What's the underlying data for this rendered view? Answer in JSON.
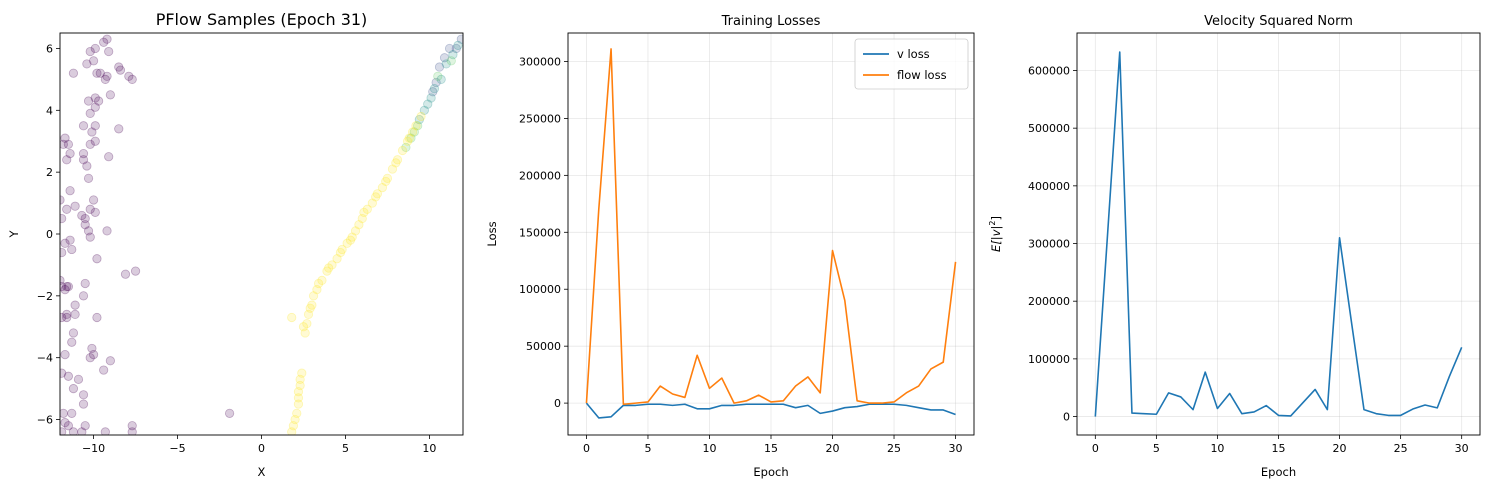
{
  "chart_data": [
    {
      "type": "scatter",
      "title": "PFlow Samples (Epoch 31)",
      "xlabel": "X",
      "ylabel": "Y",
      "xlim": [
        -12,
        12
      ],
      "ylim": [
        -6.5,
        6.5
      ],
      "xticks": [
        -10,
        -5,
        0,
        5,
        10
      ],
      "yticks": [
        -6,
        -4,
        -2,
        0,
        2,
        4,
        6
      ],
      "xtick_labels": [
        "−10",
        "−5",
        "0",
        "5",
        "10"
      ],
      "ytick_labels": [
        "−6",
        "−4",
        "−2",
        "0",
        "2",
        "4",
        "6"
      ],
      "grid": false,
      "colormap": "viridis",
      "point_alpha": 0.2,
      "groups": [
        {
          "color": "#440154",
          "points": [
            [
              -11.9,
              -6.4
            ],
            [
              -11.7,
              -6.1
            ],
            [
              -11.5,
              -6.2
            ],
            [
              -11.2,
              -6.4
            ],
            [
              -10.7,
              -6.4
            ],
            [
              -10.5,
              -6.2
            ],
            [
              -9.3,
              -6.4
            ],
            [
              -7.7,
              -6.4
            ],
            [
              -7.7,
              -6.2
            ],
            [
              -11.8,
              -5.8
            ],
            [
              -11.3,
              -5.8
            ],
            [
              -10.6,
              -5.5
            ],
            [
              -10.6,
              -5.2
            ],
            [
              -11.2,
              -5.0
            ],
            [
              -11.5,
              -4.6
            ],
            [
              -10.9,
              -4.7
            ],
            [
              -11.9,
              -4.5
            ],
            [
              -10.2,
              -4.0
            ],
            [
              -10.0,
              -3.9
            ],
            [
              -9.4,
              -4.4
            ],
            [
              -9.0,
              -4.1
            ],
            [
              -11.7,
              -3.9
            ],
            [
              -11.3,
              -3.5
            ],
            [
              -11.2,
              -3.2
            ],
            [
              -10.1,
              -3.7
            ],
            [
              -11.9,
              -2.7
            ],
            [
              -11.6,
              -2.7
            ],
            [
              -11.6,
              -2.6
            ],
            [
              -11.1,
              -2.6
            ],
            [
              -9.8,
              -2.7
            ],
            [
              -11.9,
              -1.7
            ],
            [
              -11.7,
              -1.8
            ],
            [
              -11.6,
              -1.7
            ],
            [
              -11.5,
              -1.7
            ],
            [
              -12.0,
              -1.5
            ],
            [
              -11.1,
              -2.3
            ],
            [
              -10.6,
              -2.0
            ],
            [
              -10.5,
              -1.6
            ],
            [
              -9.8,
              -0.8
            ],
            [
              -8.1,
              -1.3
            ],
            [
              -7.5,
              -1.2
            ],
            [
              -11.9,
              -0.6
            ],
            [
              -11.7,
              -0.3
            ],
            [
              -11.3,
              -0.5
            ],
            [
              -11.4,
              -0.2
            ],
            [
              -10.5,
              0.3
            ],
            [
              -10.3,
              0.1
            ],
            [
              -9.2,
              0.1
            ],
            [
              -10.2,
              -0.1
            ],
            [
              -11.9,
              0.5
            ],
            [
              -11.6,
              0.8
            ],
            [
              -11.1,
              0.9
            ],
            [
              -10.7,
              0.6
            ],
            [
              -10.2,
              0.8
            ],
            [
              -9.9,
              0.7
            ],
            [
              -10.5,
              0.5
            ],
            [
              -11.4,
              1.4
            ],
            [
              -12.0,
              1.1
            ],
            [
              -10.0,
              1.1
            ],
            [
              -10.3,
              1.8
            ],
            [
              -11.6,
              2.4
            ],
            [
              -11.4,
              2.6
            ],
            [
              -10.6,
              2.4
            ],
            [
              -10.4,
              2.2
            ],
            [
              -11.8,
              2.9
            ],
            [
              -11.5,
              2.9
            ],
            [
              -10.6,
              2.6
            ],
            [
              -10.2,
              2.9
            ],
            [
              -9.9,
              3.0
            ],
            [
              -9.1,
              2.5
            ],
            [
              -11.7,
              3.1
            ],
            [
              -10.6,
              3.5
            ],
            [
              -10.1,
              3.3
            ],
            [
              -9.9,
              3.5
            ],
            [
              -8.5,
              3.4
            ],
            [
              -10.3,
              4.3
            ],
            [
              -10.2,
              3.9
            ],
            [
              -9.9,
              4.1
            ],
            [
              -9.9,
              4.4
            ],
            [
              -9.7,
              4.3
            ],
            [
              -9.0,
              4.5
            ],
            [
              -11.2,
              5.2
            ],
            [
              -10.4,
              5.5
            ],
            [
              -9.8,
              5.2
            ],
            [
              -9.6,
              5.2
            ],
            [
              -9.3,
              5.0
            ],
            [
              -9.2,
              5.1
            ],
            [
              -8.5,
              5.4
            ],
            [
              -8.4,
              5.3
            ],
            [
              -7.9,
              5.1
            ],
            [
              -7.7,
              5.0
            ],
            [
              -10.2,
              5.9
            ],
            [
              -9.9,
              6.0
            ],
            [
              -9.4,
              6.2
            ],
            [
              -9.2,
              6.3
            ],
            [
              -9.1,
              5.9
            ],
            [
              -10.0,
              5.6
            ],
            [
              -1.9,
              -5.8
            ]
          ]
        },
        {
          "color": "#3b528b",
          "points": [
            [
              10.6,
              5.4
            ],
            [
              10.9,
              5.7
            ],
            [
              11.2,
              6.0
            ],
            [
              11.6,
              6.0
            ],
            [
              11.9,
              6.3
            ],
            [
              10.2,
              4.6
            ],
            [
              10.4,
              4.9
            ]
          ]
        },
        {
          "color": "#21918c",
          "points": [
            [
              9.7,
              4.0
            ],
            [
              9.9,
              4.2
            ],
            [
              10.1,
              4.4
            ],
            [
              10.3,
              4.7
            ],
            [
              10.7,
              5.0
            ],
            [
              11.0,
              5.5
            ],
            [
              11.4,
              5.8
            ],
            [
              11.7,
              6.1
            ],
            [
              9.4,
              3.7
            ]
          ]
        },
        {
          "color": "#5ec962",
          "points": [
            [
              9.3,
              3.5
            ],
            [
              9.1,
              3.3
            ],
            [
              8.9,
              3.1
            ],
            [
              8.6,
              2.8
            ],
            [
              10.5,
              5.1
            ],
            [
              11.3,
              5.6
            ]
          ]
        },
        {
          "color": "#fde725",
          "points": [
            [
              1.8,
              -6.4
            ],
            [
              1.9,
              -6.2
            ],
            [
              2.0,
              -6.0
            ],
            [
              2.1,
              -5.8
            ],
            [
              2.2,
              -5.5
            ],
            [
              2.2,
              -5.1
            ],
            [
              2.3,
              -4.9
            ],
            [
              2.3,
              -4.7
            ],
            [
              2.4,
              -4.5
            ],
            [
              1.8,
              -2.7
            ],
            [
              2.6,
              -3.2
            ],
            [
              2.7,
              -2.9
            ],
            [
              2.8,
              -2.6
            ],
            [
              3.0,
              -2.3
            ],
            [
              3.1,
              -2.0
            ],
            [
              3.3,
              -1.8
            ],
            [
              3.6,
              -1.5
            ],
            [
              3.9,
              -1.2
            ],
            [
              4.2,
              -1.0
            ],
            [
              4.5,
              -0.8
            ],
            [
              4.8,
              -0.5
            ],
            [
              5.1,
              -0.3
            ],
            [
              5.4,
              -0.1
            ],
            [
              5.6,
              0.1
            ],
            [
              5.8,
              0.3
            ],
            [
              6.0,
              0.5
            ],
            [
              6.3,
              0.8
            ],
            [
              6.6,
              1.0
            ],
            [
              6.9,
              1.3
            ],
            [
              7.2,
              1.5
            ],
            [
              7.5,
              1.8
            ],
            [
              7.8,
              2.1
            ],
            [
              8.1,
              2.4
            ],
            [
              8.4,
              2.7
            ],
            [
              8.7,
              3.0
            ],
            [
              9.0,
              3.3
            ],
            [
              9.2,
              3.5
            ],
            [
              9.5,
              3.8
            ],
            [
              2.2,
              -5.3
            ],
            [
              2.5,
              -3.0
            ],
            [
              2.9,
              -2.4
            ],
            [
              3.4,
              -1.6
            ],
            [
              4.0,
              -1.1
            ],
            [
              4.7,
              -0.6
            ],
            [
              5.3,
              -0.2
            ],
            [
              6.1,
              0.7
            ],
            [
              6.8,
              1.2
            ],
            [
              7.4,
              1.7
            ],
            [
              8.0,
              2.3
            ],
            [
              8.8,
              3.1
            ]
          ]
        }
      ]
    },
    {
      "type": "line",
      "title": "Training Losses",
      "xlabel": "Epoch",
      "ylabel": "Loss",
      "xlim": [
        -1.5,
        31.5
      ],
      "ylim": [
        -28000,
        325000
      ],
      "xticks": [
        0,
        5,
        10,
        15,
        20,
        25,
        30
      ],
      "yticks": [
        0,
        50000,
        100000,
        150000,
        200000,
        250000,
        300000
      ],
      "xtick_labels": [
        "0",
        "5",
        "10",
        "15",
        "20",
        "25",
        "30"
      ],
      "ytick_labels": [
        "0",
        "50000",
        "100000",
        "150000",
        "200000",
        "250000",
        "300000"
      ],
      "grid": true,
      "legend": "top-right",
      "x": [
        0,
        1,
        2,
        3,
        4,
        5,
        6,
        7,
        8,
        9,
        10,
        11,
        12,
        13,
        14,
        15,
        16,
        17,
        18,
        19,
        20,
        21,
        22,
        23,
        24,
        25,
        26,
        27,
        28,
        29,
        30
      ],
      "series": [
        {
          "name": "v loss",
          "color": "#1f77b4",
          "values": [
            0,
            -13000,
            -12000,
            -2000,
            -2000,
            -1000,
            -1000,
            -2000,
            -1000,
            -5000,
            -5000,
            -2000,
            -2000,
            -1000,
            -1000,
            -1000,
            -1000,
            -4000,
            -2000,
            -9000,
            -7000,
            -4000,
            -3000,
            -1000,
            -1000,
            -1000,
            -2000,
            -4000,
            -6000,
            -6000,
            -10000
          ]
        },
        {
          "name": "flow loss",
          "color": "#ff7f0e",
          "values": [
            0,
            170000,
            311000,
            -1000,
            0,
            1000,
            15000,
            8000,
            5000,
            42000,
            13000,
            22000,
            0,
            2000,
            7000,
            1000,
            2000,
            15000,
            23000,
            9000,
            134000,
            90000,
            2000,
            0,
            0,
            1000,
            9000,
            15000,
            30000,
            36000,
            124000
          ]
        }
      ]
    },
    {
      "type": "line",
      "title": "Velocity Squared Norm",
      "xlabel": "Epoch",
      "ylabel": "E[|v|²]",
      "ylabel_parts": {
        "prefix": "E[|v|",
        "sup": "2",
        "suffix": "]"
      },
      "xlim": [
        -1.5,
        31.5
      ],
      "ylim": [
        -32000,
        665000
      ],
      "xticks": [
        0,
        5,
        10,
        15,
        20,
        25,
        30
      ],
      "yticks": [
        0,
        100000,
        200000,
        300000,
        400000,
        500000,
        600000
      ],
      "xtick_labels": [
        "0",
        "5",
        "10",
        "15",
        "20",
        "25",
        "30"
      ],
      "ytick_labels": [
        "0",
        "100000",
        "200000",
        "300000",
        "400000",
        "500000",
        "600000"
      ],
      "grid": true,
      "x": [
        0,
        1,
        2,
        3,
        4,
        5,
        6,
        7,
        8,
        9,
        10,
        11,
        12,
        13,
        14,
        15,
        16,
        17,
        18,
        19,
        20,
        21,
        22,
        23,
        24,
        25,
        26,
        27,
        28,
        29,
        30
      ],
      "series": [
        {
          "color": "#1f77b4",
          "values": [
            0,
            315000,
            632000,
            6000,
            5000,
            4000,
            41000,
            34000,
            12000,
            77000,
            14000,
            40000,
            5000,
            8000,
            19000,
            2000,
            1000,
            24000,
            47000,
            12000,
            310000,
            160000,
            12000,
            5000,
            2000,
            2000,
            13000,
            20000,
            15000,
            70000,
            120000
          ]
        }
      ]
    }
  ]
}
